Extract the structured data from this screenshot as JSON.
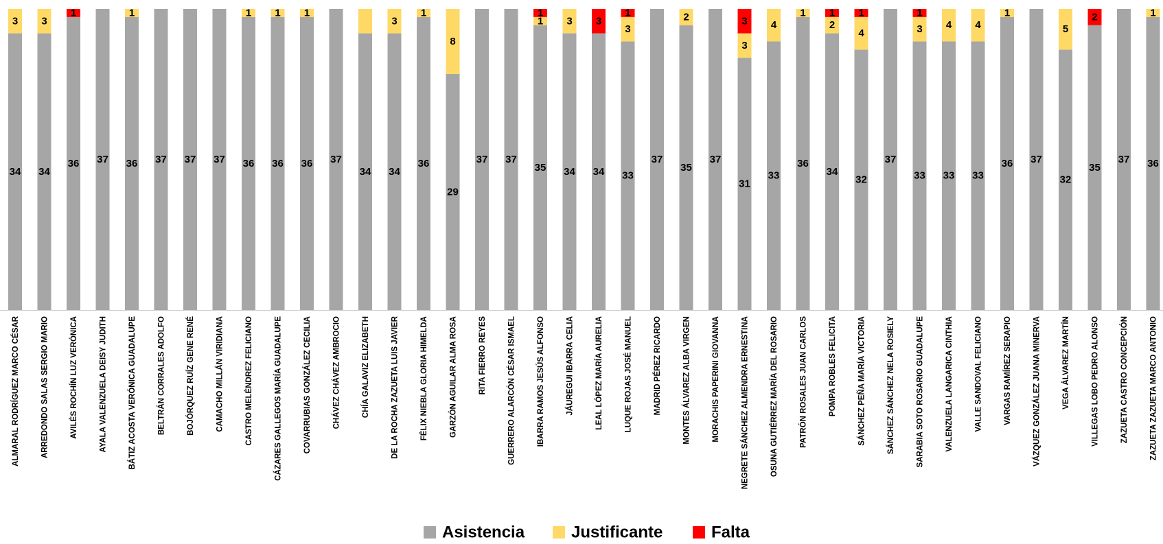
{
  "chart_data": {
    "type": "bar",
    "stacked": true,
    "orientation": "vertical",
    "ylim": [
      0,
      37
    ],
    "grid": false,
    "legend_position": "bottom",
    "categories": [
      "ALMARAL RODRÍGUEZ MARCO CÉSAR",
      "ARREDONDO SALAS SERGIO MARIO",
      "AVILÉS ROCHÍN LUZ VERÓNICA",
      "AYALA VALENZUELA DEISY JUDITH",
      "BÁTIZ ACOSTA VERÓNICA GUADALUPE",
      "BELTRÁN CORRALES ADOLFO",
      "BOJÓRQUEZ RUÍZ GENE RENÉ",
      "CAMACHO MILLÁN VIRIDIANA",
      "CASTRO MELÉNDREZ FELICIANO",
      "CÁZARES GALLEGOS MARÍA GUADALUPE",
      "COVARRUBIAS GONZÁLEZ CECILIA",
      "CHÁVEZ CHÁVEZ AMBROCIO",
      "CHÍA GALAVIZ ELIZABETH",
      "DE LA ROCHA ZAZUETA LUIS JAVIER",
      "FÉLIX NIEBLA GLORIA HIMELDA",
      "GARZÓN AGUILAR ALMA ROSA",
      "RITA FIERRO REYES",
      "GUERRERO ALARCÓN CÉSAR ISMAEL",
      "IBARRA RAMOS JESÚS ALFONSO",
      "JÁUREGUI IBARRA CELIA",
      "LEAL LÓPEZ MARÍA AURELIA",
      "LUQUE ROJAS JOSÉ MANUEL",
      "MADRID PÉREZ RICARDO",
      "MONTES ÁLVAREZ ALBA VIRGEN",
      "MORACHIS PAPERINI GIOVANNA",
      "NEGRETE SÁNCHEZ ALMENDRA ERNESTINA",
      "OSUNA GUTIÉRREZ MARÍA DEL ROSARIO",
      "PATRÓN ROSALES JUAN CARLOS",
      "POMPA ROBLES FELICITA",
      "SÁNCHEZ PEÑA MARÍA VICTORIA",
      "SÁNCHEZ SÁNCHEZ NELA ROSIELY",
      "SARABIA SOTO ROSARIO GUADALUPE",
      "VALENZUELA LANGARICA CINTHIA",
      "VALLE SANDOVAL FELICIANO",
      "VARGAS RAMÍREZ SERAPIO",
      "VÁZQUEZ GONZÁLEZ JUANA MINERVA",
      "VEGA ÁLVAREZ MARTÍN",
      "VILLEGAS LOBO PEDRO ALONSO",
      "ZAZUETA CASTRO CONCEPCIÓN",
      "ZAZUETA ZAZUETA MARCO ANTONIO"
    ],
    "series": [
      {
        "name": "Asistencia",
        "color": "#a6a6a6",
        "values": [
          34,
          34,
          36,
          37,
          36,
          37,
          37,
          37,
          36,
          36,
          36,
          37,
          34,
          34,
          36,
          29,
          37,
          37,
          35,
          34,
          34,
          33,
          37,
          35,
          37,
          31,
          33,
          36,
          34,
          32,
          37,
          33,
          33,
          33,
          36,
          37,
          32,
          35,
          37,
          36
        ]
      },
      {
        "name": "Justificante",
        "color": "#ffd966",
        "values": [
          3,
          3,
          0,
          0,
          1,
          0,
          0,
          0,
          1,
          1,
          1,
          0,
          3,
          3,
          1,
          8,
          0,
          0,
          1,
          3,
          0,
          3,
          0,
          2,
          0,
          3,
          4,
          1,
          2,
          4,
          0,
          3,
          4,
          4,
          1,
          0,
          5,
          0,
          0,
          1
        ]
      },
      {
        "name": "Falta",
        "color": "#ff0000",
        "values": [
          0,
          0,
          1,
          0,
          0,
          0,
          0,
          0,
          0,
          0,
          0,
          0,
          0,
          0,
          0,
          0,
          0,
          0,
          1,
          0,
          3,
          1,
          0,
          0,
          0,
          3,
          0,
          0,
          1,
          1,
          0,
          1,
          0,
          0,
          0,
          0,
          0,
          2,
          0,
          0
        ]
      }
    ],
    "hidden_value_labels": [
      {
        "series": "Justificante",
        "category_index": 12
      }
    ]
  }
}
